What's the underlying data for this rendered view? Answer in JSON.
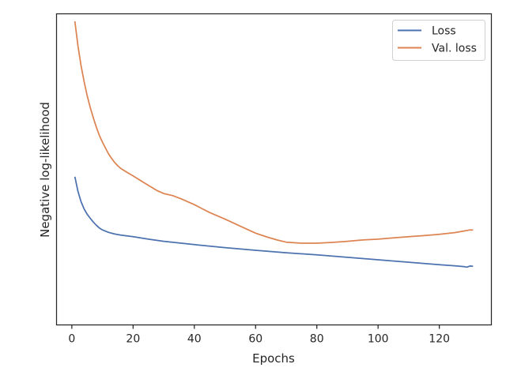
{
  "chart_data": {
    "type": "line",
    "title": "",
    "xlabel": "Epochs",
    "ylabel": "Negative log-likelihood",
    "xlim": [
      -5,
      137
    ],
    "ylim": [
      0,
      100
    ],
    "xticks": [
      0,
      20,
      40,
      60,
      80,
      100,
      120
    ],
    "yticks": [],
    "grid": false,
    "legend": "top-right",
    "series": [
      {
        "name": "Loss",
        "color": "#4c72b0",
        "x": [
          1,
          2,
          3,
          4,
          5,
          6,
          7,
          8,
          9,
          10,
          12,
          14,
          16,
          18,
          20,
          25,
          30,
          40,
          50,
          60,
          70,
          80,
          90,
          100,
          110,
          120,
          125,
          128,
          129,
          130,
          131
        ],
        "y": [
          42.8,
          37.4,
          33.6,
          30.9,
          29.0,
          27.5,
          26.1,
          24.9,
          23.9,
          23.2,
          22.3,
          21.7,
          21.3,
          21.0,
          20.7,
          19.8,
          19.0,
          17.8,
          16.7,
          15.7,
          14.8,
          14.0,
          13.1,
          12.2,
          11.3,
          10.4,
          10.0,
          9.7,
          9.5,
          9.9,
          9.8
        ]
      },
      {
        "name": "Val. loss",
        "color": "#dd8452",
        "x": [
          1,
          2,
          3,
          4,
          5,
          6,
          7,
          8,
          9,
          10,
          11,
          12,
          13,
          14,
          15,
          16,
          18,
          20,
          22,
          25,
          28,
          30,
          33,
          36,
          40,
          45,
          50,
          55,
          60,
          64,
          67,
          70,
          75,
          80,
          85,
          90,
          95,
          100,
          105,
          110,
          115,
          120,
          125,
          128,
          130,
          131
        ],
        "y": [
          100,
          91.0,
          83.7,
          77.8,
          72.7,
          68.3,
          64.5,
          61.0,
          58.0,
          55.5,
          53.3,
          51.2,
          49.5,
          48.0,
          46.8,
          45.8,
          44.4,
          43.1,
          41.7,
          39.6,
          37.6,
          36.6,
          35.8,
          34.5,
          32.5,
          29.6,
          27.2,
          24.6,
          22.0,
          20.5,
          19.5,
          18.7,
          18.3,
          18.3,
          18.6,
          19.0,
          19.5,
          19.8,
          20.3,
          20.7,
          21.1,
          21.6,
          22.2,
          22.8,
          23.2,
          23.2
        ]
      }
    ]
  }
}
